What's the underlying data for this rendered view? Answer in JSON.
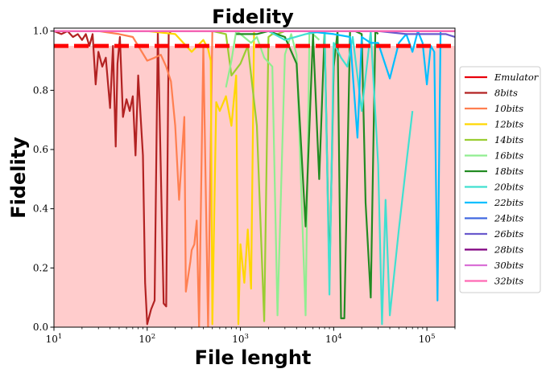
{
  "chart_data": {
    "type": "line",
    "title": "Fidelity",
    "xlabel": "File lenght",
    "ylabel": "Fidelity",
    "xscale": "log",
    "xlim": [
      10,
      200000
    ],
    "ylim": [
      0,
      1.01
    ],
    "x_ticks": [
      {
        "value": 10,
        "base": "10",
        "exp": "1"
      },
      {
        "value": 100,
        "base": "10",
        "exp": "2"
      },
      {
        "value": 1000,
        "base": "10",
        "exp": "3"
      },
      {
        "value": 10000,
        "base": "10",
        "exp": "4"
      },
      {
        "value": 100000,
        "base": "10",
        "exp": "5"
      }
    ],
    "y_ticks": [
      {
        "value": 0.0,
        "label": "0.0"
      },
      {
        "value": 0.2,
        "label": "0.2"
      },
      {
        "value": 0.4,
        "label": "0.4"
      },
      {
        "value": 0.6,
        "label": "0.6"
      },
      {
        "value": 0.8,
        "label": "0.8"
      },
      {
        "value": 1.0,
        "label": "1.0"
      }
    ],
    "threshold": {
      "value": 0.95,
      "color": "#ff0000",
      "style": "dashed"
    },
    "shaded_region": {
      "from": 0,
      "to": 0.95,
      "color": "#ffcccc"
    },
    "grid": false,
    "legend_position": "right",
    "series": [
      {
        "name": "Emulator",
        "color": "#e8000b",
        "x": [
          10,
          200000
        ],
        "y": [
          1.0,
          1.0
        ]
      },
      {
        "name": "8bits",
        "color": "#b22222",
        "x": [
          10,
          12,
          14,
          16,
          18,
          20,
          22,
          24,
          26,
          28,
          30,
          33,
          36,
          40,
          43,
          46,
          48,
          51,
          55,
          60,
          65,
          70,
          75,
          80,
          90,
          95,
          100,
          110,
          120,
          130,
          140,
          150,
          160,
          170,
          180,
          190,
          200
        ],
        "y": [
          1.0,
          0.99,
          1.0,
          0.98,
          0.99,
          0.97,
          0.99,
          0.95,
          0.99,
          0.82,
          0.93,
          0.88,
          0.91,
          0.74,
          0.95,
          0.61,
          0.89,
          0.98,
          0.71,
          0.77,
          0.73,
          0.78,
          0.58,
          0.85,
          0.58,
          0.15,
          0.01,
          0.06,
          0.09,
          1.0,
          0.53,
          0.08,
          0.07,
          0.99,
          1.0,
          1.0,
          1.0
        ]
      },
      {
        "name": "10bits",
        "color": "#ff7f50",
        "x": [
          10,
          30,
          50,
          70,
          100,
          120,
          140,
          160,
          180,
          200,
          220,
          250,
          260,
          290,
          300,
          320,
          340,
          360,
          400,
          450,
          500,
          600
        ],
        "y": [
          1.0,
          1.0,
          0.99,
          0.98,
          0.9,
          0.91,
          0.92,
          0.88,
          0.83,
          0.68,
          0.43,
          0.71,
          0.12,
          0.22,
          0.26,
          0.28,
          0.36,
          0.0,
          0.95,
          0.0,
          1.0,
          1.0
        ]
      },
      {
        "name": "12bits",
        "color": "#ffd700",
        "x": [
          100,
          200,
          300,
          400,
          450,
          480,
          500,
          550,
          600,
          700,
          800,
          900,
          950,
          1000,
          1100,
          1200,
          1300,
          1400,
          1500
        ],
        "y": [
          1.0,
          0.99,
          0.93,
          0.97,
          0.94,
          0.9,
          0.01,
          0.76,
          0.73,
          0.78,
          0.68,
          0.85,
          0.01,
          0.28,
          0.15,
          0.33,
          0.13,
          1.0,
          1.0
        ]
      },
      {
        "name": "14bits",
        "color": "#9acd32",
        "x": [
          300,
          500,
          700,
          800,
          1000,
          1200,
          1500,
          1800,
          2000,
          2200,
          2500,
          3000
        ],
        "y": [
          1.0,
          1.0,
          0.99,
          0.85,
          0.89,
          0.95,
          0.68,
          0.02,
          0.98,
          0.99,
          0.99,
          1.0
        ]
      },
      {
        "name": "16bits",
        "color": "#90ee90",
        "x": [
          700,
          800,
          900,
          1000,
          1300,
          1500,
          1800,
          2200,
          2500,
          3000,
          3500,
          4000,
          5000,
          5500,
          6000,
          7000
        ],
        "y": [
          0.81,
          0.9,
          1.0,
          0.99,
          0.96,
          0.98,
          0.91,
          0.88,
          0.04,
          0.92,
          0.99,
          0.92,
          0.04,
          1.0,
          0.99,
          0.97
        ]
      },
      {
        "name": "18bits",
        "color": "#228b22",
        "x": [
          900,
          1500,
          2000,
          3000,
          4000,
          5000,
          6000,
          7000,
          8000,
          9000,
          10000,
          11000,
          12000,
          13000,
          15000,
          17000,
          20000,
          22000,
          25000,
          28000,
          30000
        ],
        "y": [
          0.99,
          0.99,
          1.0,
          0.98,
          0.89,
          0.34,
          0.99,
          0.5,
          1.0,
          0.16,
          0.88,
          1.0,
          0.03,
          0.03,
          1.0,
          1.0,
          0.99,
          0.42,
          0.1,
          1.0,
          0.99
        ]
      },
      {
        "name": "20bits",
        "color": "#40e0d0",
        "x": [
          2000,
          3000,
          5000,
          8000,
          9000,
          10000,
          12000,
          14000,
          16000,
          20000,
          25000,
          30000,
          33000,
          36000,
          40000,
          50000,
          60000,
          70000
        ],
        "y": [
          1.0,
          0.97,
          0.99,
          1.0,
          0.11,
          0.96,
          0.91,
          0.88,
          0.98,
          0.73,
          1.0,
          0.55,
          0.01,
          0.43,
          0.04,
          0.33,
          0.55,
          0.73
        ]
      },
      {
        "name": "22bits",
        "color": "#00bfff",
        "x": [
          5000,
          10000,
          15000,
          18000,
          20000,
          25000,
          30000,
          40000,
          50000,
          60000,
          70000,
          80000,
          90000,
          100000,
          110000,
          120000,
          130000,
          140000
        ],
        "y": [
          1.0,
          0.99,
          0.98,
          0.64,
          0.98,
          0.96,
          0.96,
          0.84,
          0.96,
          0.99,
          0.93,
          1.0,
          0.96,
          0.82,
          0.95,
          0.93,
          0.09,
          1.0
        ]
      },
      {
        "name": "24bits",
        "color": "#4169e1",
        "x": [
          10,
          200000
        ],
        "y": [
          1.0,
          1.0
        ]
      },
      {
        "name": "26bits",
        "color": "#6a5acd",
        "x": [
          10,
          30000,
          60000,
          100000,
          160000,
          200000
        ],
        "y": [
          1.0,
          1.0,
          0.99,
          0.99,
          0.99,
          0.98
        ]
      },
      {
        "name": "28bits",
        "color": "#800080",
        "x": [
          10,
          200000
        ],
        "y": [
          1.0,
          1.0
        ]
      },
      {
        "name": "30bits",
        "color": "#da70d6",
        "x": [
          10,
          200000
        ],
        "y": [
          1.0,
          1.0
        ]
      },
      {
        "name": "32bits",
        "color": "#ff69b4",
        "x": [
          10,
          200000
        ],
        "y": [
          1.0,
          1.0
        ]
      }
    ]
  }
}
